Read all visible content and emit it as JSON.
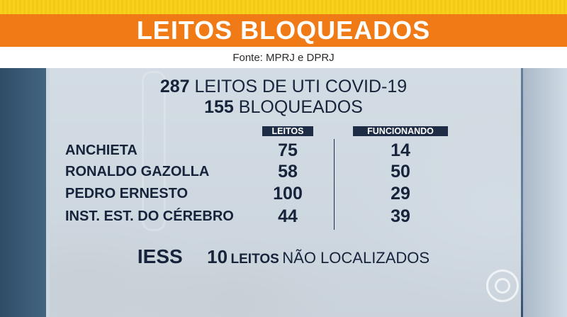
{
  "header": {
    "title": "LEITOS BLOQUEADOS",
    "source": "Fonte: MPRJ e DPRJ"
  },
  "summary": {
    "line1_number": "287",
    "line1_text": "LEITOS DE UTI COVID-19",
    "line2_number": "155",
    "line2_text": "BLOQUEADOS"
  },
  "table": {
    "columns": [
      "LEITOS",
      "FUNCIONANDO"
    ],
    "rows": [
      {
        "name": "ANCHIETA",
        "leitos": "75",
        "funcionando": "14"
      },
      {
        "name": "RONALDO GAZOLLA",
        "leitos": "58",
        "funcionando": "50"
      },
      {
        "name": "PEDRO ERNESTO",
        "leitos": "100",
        "funcionando": "29"
      },
      {
        "name": "INST. EST. DO CÉREBRO",
        "leitos": "44",
        "funcionando": "39"
      }
    ]
  },
  "footer": {
    "iess": "IESS",
    "number": "10",
    "leitos_word": "LEITOS",
    "rest": "NÃO LOCALIZADOS"
  },
  "colors": {
    "banner": "#f07b16",
    "strip": "#f7d11e",
    "dark_text": "#16233a"
  },
  "logo": "globo-icon"
}
